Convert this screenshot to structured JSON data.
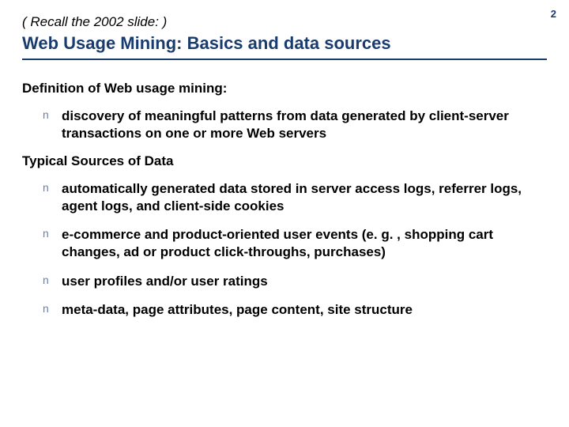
{
  "pageNumber": "2",
  "preTitle": "( Recall the 2002 slide: )",
  "title": "Web Usage Mining: Basics and data sources",
  "colors": {
    "heading": "#1a3b6e",
    "bullet_marker": "#6a82ab",
    "body": "#000000",
    "background": "#ffffff",
    "rule": "#1a3b6e"
  },
  "typography": {
    "title_fontsize": 22,
    "section_heading_fontsize": 17,
    "bullet_text_fontsize": 17,
    "pretitle_fontsize": 17,
    "page_num_fontsize": 13,
    "bullet_marker": "n"
  },
  "sections": [
    {
      "heading": "Definition of Web usage mining:",
      "bullets": [
        "discovery of meaningful patterns from data generated by client-server transactions on one or more Web servers"
      ]
    },
    {
      "heading": "Typical Sources of Data",
      "bullets": [
        "automatically generated data stored in server access logs, referrer logs, agent logs, and client-side cookies",
        "e-commerce and product-oriented user events (e. g. , shopping cart changes, ad or product click-throughs, purchases)",
        "user profiles and/or user ratings",
        "meta-data, page attributes, page content, site structure"
      ]
    }
  ]
}
